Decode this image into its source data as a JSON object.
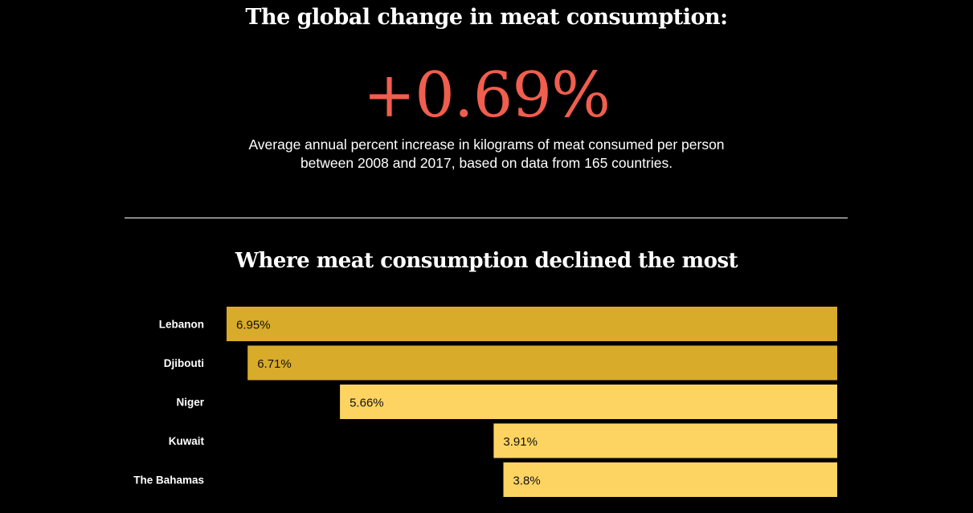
{
  "header": {
    "title": "The global change in meat consumption:",
    "big_number": "+0.69%",
    "subtitle_line1": "Average annual percent increase in kilograms of meat consumed per person",
    "subtitle_line2": "between 2008 and 2017, based on data from 165 countries."
  },
  "colors": {
    "background": "#000000",
    "accent_number": "#ef5e4e",
    "bar_dark": "#d9ab2a",
    "bar_light": "#fdd462",
    "text": "#ffffff"
  },
  "chart_data": {
    "type": "bar",
    "orientation": "horizontal",
    "title": "Where meat consumption declined the most",
    "categories": [
      "Lebanon",
      "Djibouti",
      "Niger",
      "Kuwait",
      "The Bahamas"
    ],
    "values": [
      6.95,
      6.71,
      5.66,
      3.91,
      3.8
    ],
    "value_labels": [
      "6.95%",
      "6.71%",
      "5.66%",
      "3.91%",
      "3.8%"
    ],
    "highlight": [
      true,
      true,
      false,
      false,
      false
    ],
    "xlim": [
      0,
      6.95
    ],
    "bars_anchored": "right",
    "grid": false,
    "legend": "none"
  }
}
